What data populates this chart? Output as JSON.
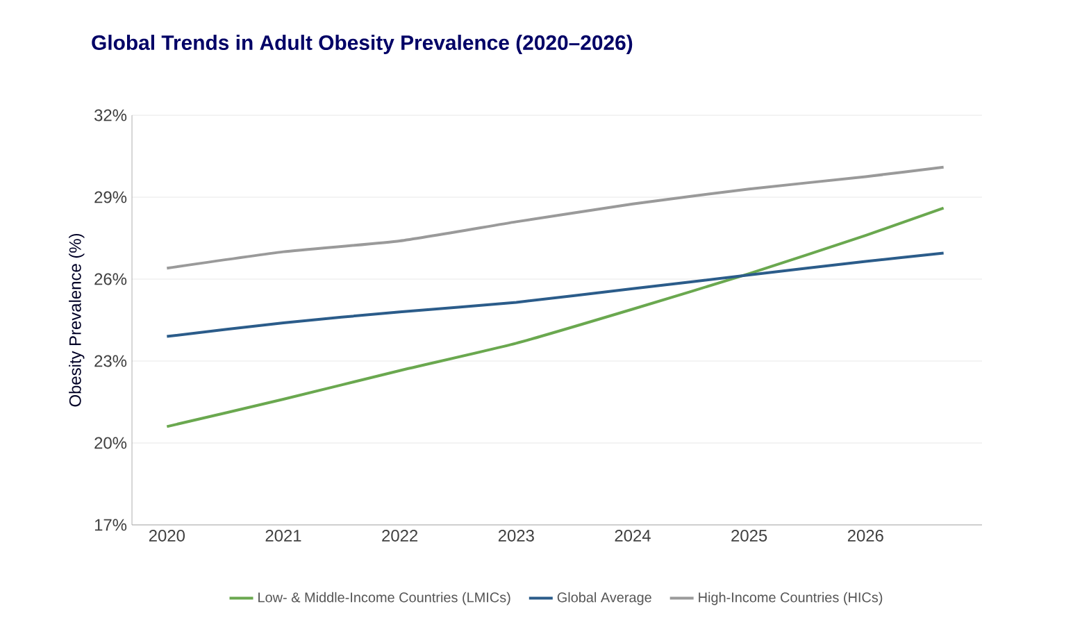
{
  "chart_data": {
    "type": "line",
    "title": "Global Trends in Adult Obesity Prevalence (2020–2026)",
    "ylabel": "Obesity Prevalence (%)",
    "x": [
      2020,
      2021,
      2022,
      2023,
      2024,
      2025,
      2026,
      2026.67
    ],
    "series": [
      {
        "name": "Low- & Middle-Income Countries (LMICs)",
        "color": "#6aa84f",
        "values": [
          20.6,
          21.6,
          22.65,
          23.65,
          24.9,
          26.2,
          27.6,
          28.6
        ]
      },
      {
        "name": "Global Average",
        "color": "#2b5c8a",
        "values": [
          23.9,
          24.4,
          24.8,
          25.15,
          25.65,
          26.15,
          26.65,
          26.95
        ]
      },
      {
        "name": "High-Income Countries (HICs)",
        "color": "#9a9a9a",
        "values": [
          26.4,
          27.0,
          27.4,
          28.1,
          28.75,
          29.3,
          29.75,
          30.1
        ]
      }
    ],
    "xlim": [
      2019.7,
      2027
    ],
    "xticks": [
      2020,
      2021,
      2022,
      2023,
      2024,
      2025,
      2026
    ],
    "ylim": [
      17,
      32
    ],
    "yticks": [
      {
        "value": 17,
        "label": "17%"
      },
      {
        "value": 20,
        "label": "20%"
      },
      {
        "value": 23,
        "label": "23%"
      },
      {
        "value": 26,
        "label": "26%"
      },
      {
        "value": 29,
        "label": "29%"
      },
      {
        "value": 32,
        "label": "32%"
      }
    ],
    "grid": "y",
    "legend": "bottom"
  }
}
